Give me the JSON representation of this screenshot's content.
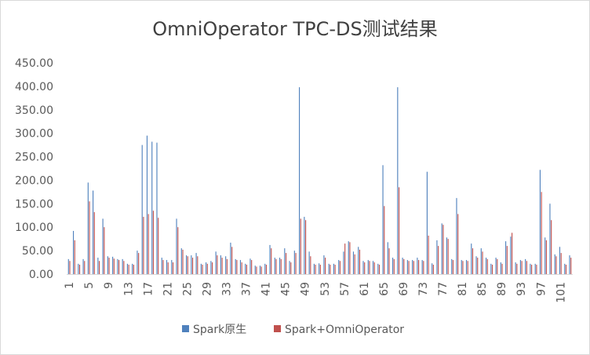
{
  "chart_data": {
    "type": "bar",
    "title": "OmniOperator TPC-DS测试结果",
    "xlabel": "",
    "ylabel": "",
    "ylim": [
      0,
      450
    ],
    "yticks": [
      "0.00",
      "50.00",
      "100.00",
      "150.00",
      "200.00",
      "250.00",
      "300.00",
      "350.00",
      "400.00",
      "450.00"
    ],
    "xtick_labels": [
      "1",
      "5",
      "9",
      "13",
      "17",
      "21",
      "25",
      "29",
      "33",
      "37",
      "41",
      "45",
      "49",
      "53",
      "57",
      "61",
      "65",
      "69",
      "73",
      "77",
      "81",
      "85",
      "89",
      "93",
      "97",
      "101"
    ],
    "grid": false,
    "legend_position": "bottom",
    "colors": {
      "spark": "#4f81bd",
      "omni": "#c0504d"
    },
    "categories": [
      "1",
      "2",
      "3",
      "4",
      "5",
      "6",
      "7",
      "8",
      "9",
      "10",
      "11",
      "12",
      "13",
      "14",
      "15",
      "16",
      "17",
      "18",
      "19",
      "20",
      "21",
      "22",
      "23",
      "24",
      "25",
      "26",
      "27",
      "28",
      "29",
      "30",
      "31",
      "32",
      "33",
      "34",
      "35",
      "36",
      "37",
      "38",
      "39",
      "40",
      "41",
      "42",
      "43",
      "44",
      "45",
      "46",
      "47",
      "48",
      "49",
      "50",
      "51",
      "52",
      "53",
      "54",
      "55",
      "56",
      "57",
      "58",
      "59",
      "60",
      "61",
      "62",
      "63",
      "64",
      "65",
      "66",
      "67",
      "68",
      "69",
      "70",
      "71",
      "72",
      "73",
      "74",
      "75",
      "76",
      "77",
      "78",
      "79",
      "80",
      "81",
      "82",
      "83",
      "84",
      "85",
      "86",
      "87",
      "88",
      "89",
      "90",
      "91",
      "92",
      "93",
      "94",
      "95",
      "96",
      "97",
      "98",
      "99",
      "100",
      "101",
      "102",
      "103"
    ],
    "series": [
      {
        "name": "Spark原生",
        "values": [
          32,
          92,
          22,
          32,
          195,
          178,
          35,
          118,
          38,
          37,
          32,
          32,
          22,
          22,
          50,
          275,
          295,
          282,
          280,
          35,
          30,
          30,
          118,
          55,
          40,
          40,
          45,
          22,
          25,
          28,
          48,
          40,
          38,
          67,
          32,
          30,
          22,
          33,
          18,
          18,
          22,
          62,
          35,
          35,
          55,
          28,
          50,
          398,
          122,
          48,
          22,
          23,
          40,
          22,
          22,
          30,
          48,
          70,
          48,
          58,
          28,
          30,
          28,
          22,
          232,
          68,
          35,
          398,
          35,
          30,
          30,
          35,
          30,
          218,
          23,
          72,
          108,
          78,
          32,
          162,
          30,
          30,
          65,
          38,
          55,
          35,
          22,
          35,
          25,
          70,
          80,
          25,
          30,
          32,
          22,
          22,
          222,
          78,
          150,
          42,
          58,
          22,
          40
        ],
        "color": "#4f81bd"
      },
      {
        "name": "Spark+OmniOperator",
        "values": [
          28,
          72,
          20,
          28,
          155,
          132,
          28,
          100,
          35,
          33,
          30,
          28,
          20,
          20,
          45,
          122,
          128,
          135,
          120,
          30,
          25,
          25,
          100,
          52,
          38,
          35,
          38,
          20,
          22,
          25,
          40,
          35,
          32,
          58,
          30,
          25,
          20,
          30,
          16,
          16,
          20,
          55,
          32,
          32,
          45,
          25,
          45,
          118,
          115,
          38,
          20,
          20,
          35,
          20,
          20,
          28,
          65,
          68,
          42,
          52,
          25,
          28,
          25,
          20,
          145,
          55,
          32,
          185,
          32,
          28,
          28,
          30,
          28,
          82,
          20,
          60,
          105,
          75,
          30,
          128,
          28,
          28,
          55,
          35,
          48,
          32,
          20,
          32,
          22,
          60,
          88,
          22,
          28,
          28,
          20,
          20,
          175,
          72,
          115,
          38,
          45,
          20,
          35
        ],
        "color": "#c0504d"
      }
    ]
  }
}
